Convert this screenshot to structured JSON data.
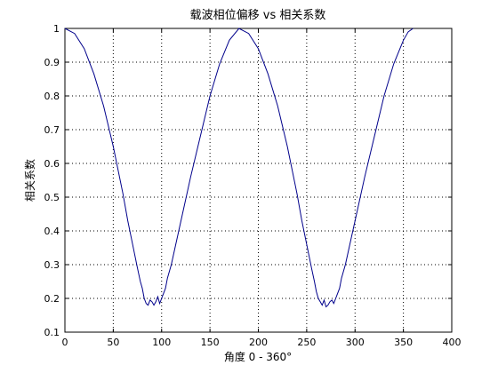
{
  "chart_data": {
    "type": "line",
    "title": "载波相位偏移 vs 相关系数",
    "xlabel": "角度 0 - 360°",
    "ylabel": "相关系数",
    "xlim": [
      0,
      400
    ],
    "ylim": [
      0.1,
      1
    ],
    "xticks": [
      0,
      50,
      100,
      150,
      200,
      250,
      300,
      350,
      400
    ],
    "yticks": [
      0.1,
      0.2,
      0.3,
      0.4,
      0.5,
      0.6,
      0.7,
      0.8,
      0.9,
      1
    ],
    "ytick_labels": [
      "0.1",
      "0.2",
      "0.3",
      "0.4",
      "0.5",
      "0.6",
      "0.7",
      "0.8",
      "0.9",
      "1"
    ],
    "grid": true,
    "line_color": "#00008b",
    "series": [
      {
        "x": [
          0,
          10,
          20,
          30,
          40,
          50,
          60,
          65,
          70,
          75,
          78,
          80,
          82,
          84,
          86,
          88,
          90,
          92,
          94,
          96,
          98,
          100,
          102,
          104,
          106,
          110,
          120,
          130,
          140,
          150,
          160,
          170,
          180,
          190,
          200,
          210,
          220,
          230,
          240,
          245,
          250,
          255,
          258,
          260,
          262,
          264,
          266,
          268,
          270,
          272,
          274,
          276,
          278,
          280,
          282,
          284,
          286,
          290,
          300,
          310,
          320,
          330,
          340,
          350,
          355,
          360
        ],
        "y": [
          1.0,
          0.985,
          0.94,
          0.865,
          0.77,
          0.65,
          0.51,
          0.43,
          0.36,
          0.29,
          0.25,
          0.23,
          0.2,
          0.185,
          0.18,
          0.195,
          0.19,
          0.18,
          0.19,
          0.205,
          0.185,
          0.2,
          0.215,
          0.23,
          0.26,
          0.3,
          0.43,
          0.56,
          0.68,
          0.8,
          0.895,
          0.965,
          1.0,
          0.985,
          0.94,
          0.865,
          0.77,
          0.65,
          0.51,
          0.43,
          0.36,
          0.29,
          0.25,
          0.22,
          0.2,
          0.19,
          0.18,
          0.195,
          0.175,
          0.18,
          0.19,
          0.195,
          0.185,
          0.2,
          0.215,
          0.23,
          0.26,
          0.3,
          0.43,
          0.56,
          0.68,
          0.8,
          0.895,
          0.965,
          0.99,
          1.0
        ]
      }
    ]
  }
}
